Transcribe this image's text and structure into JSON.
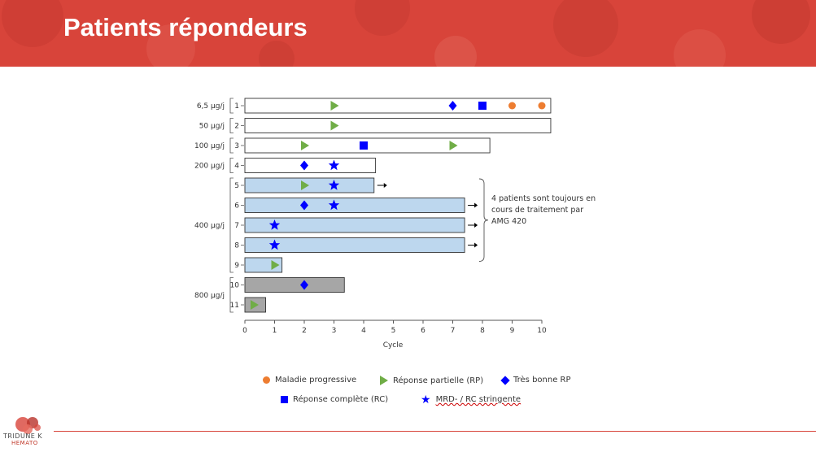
{
  "slide": {
    "title": "Patients répondeurs"
  },
  "colors": {
    "header": "#d8443a",
    "bar_white": "#ffffff",
    "bar_blue": "#bdd7ee",
    "bar_gray": "#a6a6a6",
    "progressive": "#ed7d31",
    "partial": "#70ad47",
    "very_good": "#0000ff",
    "complete": "#0000ff",
    "mrd": "#0000ff",
    "footer_line": "#d8443a"
  },
  "chart_data": {
    "type": "swimmer",
    "xlabel": "Cycle",
    "xlim": [
      0,
      10
    ],
    "xticks": [
      0,
      1,
      2,
      3,
      4,
      5,
      6,
      7,
      8,
      9,
      10
    ],
    "dose_groups": [
      {
        "label": "6,5 µg/j",
        "patients": [
          1
        ]
      },
      {
        "label": "50 µg/j",
        "patients": [
          2
        ]
      },
      {
        "label": "100 µg/j",
        "patients": [
          3
        ]
      },
      {
        "label": "200 µg/j",
        "patients": [
          4
        ]
      },
      {
        "label": "400 µg/j",
        "patients": [
          5,
          6,
          7,
          8,
          9
        ]
      },
      {
        "label": "800 µg/j",
        "patients": [
          10,
          11
        ]
      }
    ],
    "patients": [
      {
        "id": "1",
        "duration": 10.3,
        "color": "white",
        "ongoing": false,
        "events": [
          {
            "x": 3,
            "type": "partial"
          },
          {
            "x": 7,
            "type": "very_good"
          },
          {
            "x": 8,
            "type": "complete"
          },
          {
            "x": 9,
            "type": "progressive"
          },
          {
            "x": 10,
            "type": "progressive"
          }
        ]
      },
      {
        "id": "2",
        "duration": 10.3,
        "color": "white",
        "ongoing": false,
        "events": [
          {
            "x": 3,
            "type": "partial"
          }
        ]
      },
      {
        "id": "3",
        "duration": 8.25,
        "color": "white",
        "ongoing": false,
        "events": [
          {
            "x": 2,
            "type": "partial"
          },
          {
            "x": 4,
            "type": "complete"
          },
          {
            "x": 7,
            "type": "partial"
          }
        ]
      },
      {
        "id": "4",
        "duration": 4.4,
        "color": "white",
        "ongoing": false,
        "events": [
          {
            "x": 2,
            "type": "very_good"
          },
          {
            "x": 3,
            "type": "mrd"
          }
        ]
      },
      {
        "id": "5",
        "duration": 4.35,
        "color": "blue",
        "ongoing": true,
        "events": [
          {
            "x": 2,
            "type": "partial"
          },
          {
            "x": 3,
            "type": "mrd"
          }
        ]
      },
      {
        "id": "6",
        "duration": 7.4,
        "color": "blue",
        "ongoing": true,
        "events": [
          {
            "x": 2,
            "type": "very_good"
          },
          {
            "x": 3,
            "type": "mrd"
          }
        ]
      },
      {
        "id": "7",
        "duration": 7.4,
        "color": "blue",
        "ongoing": true,
        "events": [
          {
            "x": 1,
            "type": "mrd"
          }
        ]
      },
      {
        "id": "8",
        "duration": 7.4,
        "color": "blue",
        "ongoing": true,
        "events": [
          {
            "x": 1,
            "type": "mrd"
          }
        ]
      },
      {
        "id": "9",
        "duration": 1.25,
        "color": "blue",
        "ongoing": false,
        "events": [
          {
            "x": 1,
            "type": "partial"
          }
        ]
      },
      {
        "id": "10",
        "duration": 3.35,
        "color": "gray",
        "ongoing": false,
        "events": [
          {
            "x": 2,
            "type": "very_good"
          }
        ]
      },
      {
        "id": "11",
        "duration": 0.7,
        "color": "gray",
        "ongoing": false,
        "events": [
          {
            "x": 0.3,
            "type": "partial"
          }
        ]
      }
    ],
    "annotation": {
      "lines": [
        "4 patients sont toujours en",
        "cours de traitement par",
        "AMG 420"
      ]
    },
    "legend": [
      {
        "type": "progressive",
        "label": "Maladie progressive"
      },
      {
        "type": "partial",
        "label": "Réponse partielle (RP)"
      },
      {
        "type": "very_good",
        "label": "Très bonne RP"
      },
      {
        "type": "complete",
        "label": "Réponse complète (RC)"
      },
      {
        "type": "mrd",
        "label": "MRD- / RC stringente"
      }
    ]
  },
  "logo": {
    "line1": "TRIDUNE K",
    "line2": "HEMATO"
  }
}
